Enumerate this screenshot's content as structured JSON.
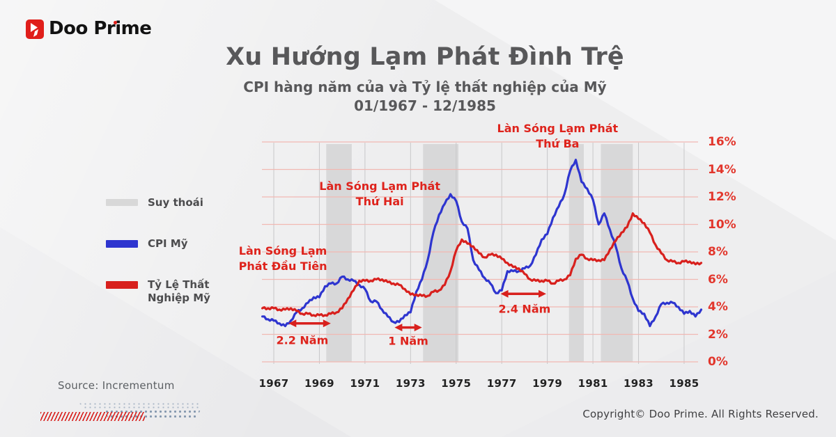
{
  "brand": {
    "logo_text": "Doo Prime"
  },
  "header": {
    "title": "Xu Hướng Lạm Phát Đình Trệ",
    "subtitle": "CPI hàng năm của và Tỷ lệ thất nghiệp của Mỹ",
    "date_range": "01/1967 - 12/1985"
  },
  "legend": {
    "recession_label": "Suy thoái",
    "cpi_label": "CPI Mỹ",
    "unemployment_label": "Tỷ Lệ Thất Nghiệp Mỹ"
  },
  "footer": {
    "source": "Source: Incrementum",
    "copyright": "Copyright© Doo Prime. All Rights Reserved."
  },
  "colors": {
    "red": "#d8201d",
    "blue": "#2e35cf",
    "grid_pink": "#f1b8b2",
    "grid_gray": "#c7c7c9",
    "band_gray": "#d3d3d5",
    "axis_label_red": "#e2362c",
    "title_gray": "#58585a",
    "brand_red": "#e01e1a"
  },
  "chart_data": {
    "type": "line",
    "title": "CPI hàng năm của và Tỷ lệ thất nghiệp của Mỹ 01/1967 - 12/1985",
    "xlabel": "",
    "ylabel": "",
    "xlim": [
      1966.5,
      1986
    ],
    "ylim": [
      0,
      16
    ],
    "grid": true,
    "legend_position": "left",
    "x_start": 1966.5,
    "x_step": 0.25,
    "x_ticks": [
      1967,
      1969,
      1971,
      1973,
      1975,
      1977,
      1979,
      1981,
      1983,
      1985
    ],
    "y_ticks": [
      "0%",
      "2%",
      "4%",
      "6%",
      "8%",
      "10%",
      "12%",
      "14%",
      "16%"
    ],
    "series": [
      {
        "id": "cpi",
        "name": "CPI Mỹ",
        "color": "#2e35cf",
        "values": [
          3.3,
          3.1,
          3.0,
          2.8,
          2.6,
          3.0,
          3.6,
          3.9,
          4.3,
          4.7,
          4.7,
          5.5,
          5.7,
          5.7,
          6.2,
          6.0,
          5.9,
          5.6,
          5.3,
          4.4,
          4.4,
          3.8,
          3.3,
          2.9,
          2.9,
          3.4,
          3.6,
          5.1,
          6.0,
          7.4,
          9.4,
          10.7,
          11.5,
          12.2,
          11.7,
          10.2,
          9.7,
          7.4,
          6.7,
          6.1,
          5.7,
          5.0,
          5.2,
          6.6,
          6.6,
          6.6,
          6.8,
          7.0,
          7.8,
          8.9,
          9.3,
          10.5,
          11.3,
          12.2,
          13.9,
          14.7,
          13.1,
          12.6,
          11.8,
          10.0,
          10.8,
          9.6,
          8.4,
          6.8,
          5.9,
          4.6,
          3.7,
          3.5,
          2.6,
          3.3,
          4.2,
          4.3,
          4.3,
          4.0,
          3.5,
          3.7,
          3.3,
          3.8
        ]
      },
      {
        "id": "unemployment",
        "name": "Tỷ Lệ Thất Nghiệp Mỹ",
        "color": "#d8201d",
        "values": [
          3.9,
          3.9,
          3.9,
          3.8,
          3.8,
          3.9,
          3.7,
          3.5,
          3.5,
          3.4,
          3.4,
          3.4,
          3.5,
          3.6,
          3.9,
          4.6,
          5.2,
          5.9,
          5.9,
          5.9,
          6.0,
          6.0,
          5.8,
          5.7,
          5.6,
          5.3,
          4.9,
          4.9,
          4.8,
          4.8,
          5.1,
          5.2,
          5.6,
          6.6,
          8.1,
          8.9,
          8.6,
          8.4,
          7.9,
          7.6,
          7.8,
          7.8,
          7.5,
          7.2,
          6.9,
          6.8,
          6.4,
          6.0,
          5.9,
          5.9,
          5.9,
          5.7,
          5.9,
          6.0,
          6.3,
          7.5,
          7.8,
          7.5,
          7.4,
          7.4,
          7.4,
          8.2,
          8.8,
          9.4,
          9.8,
          10.8,
          10.4,
          10.1,
          9.4,
          8.5,
          7.9,
          7.4,
          7.3,
          7.2,
          7.3,
          7.3,
          7.1,
          7.2
        ]
      }
    ],
    "recession_bands": [
      [
        1969.3,
        1970.42
      ],
      [
        1973.55,
        1975.1
      ],
      [
        1979.95,
        1980.6
      ],
      [
        1981.35,
        1982.75
      ]
    ],
    "recession_label": "Suy thoái",
    "annotations": [
      {
        "text": "Làn Sóng Lạm\nPhát Đầu Tiên",
        "year": 1967.4,
        "pct": 7.5
      },
      {
        "text": "Làn Sóng Lạm Phát\nThứ Hai",
        "year": 1971.65,
        "pct": 12.2
      },
      {
        "text": "Làn Sóng Lạm Phát\nThứ Ba",
        "year": 1979.45,
        "pct": 16.4
      }
    ],
    "arrows": [
      {
        "label": "2.2 Năm",
        "x1": 1967.65,
        "x2": 1969.5,
        "y": 2.8,
        "label_year": 1968.25,
        "label_pct": 1.55
      },
      {
        "label": "1 Năm",
        "x1": 1972.3,
        "x2": 1973.5,
        "y": 2.5,
        "label_year": 1972.9,
        "label_pct": 1.5
      },
      {
        "label": "2.4 Năm",
        "x1": 1976.95,
        "x2": 1978.95,
        "y": 4.95,
        "label_year": 1978.0,
        "label_pct": 3.85
      }
    ]
  }
}
